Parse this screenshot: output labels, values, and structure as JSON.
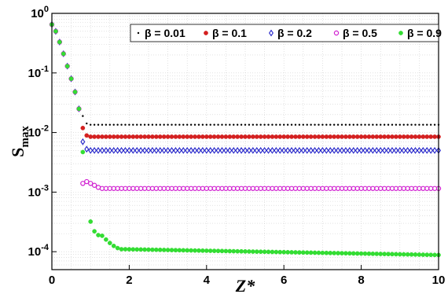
{
  "chart_data": {
    "type": "scatter",
    "xlabel": "Z*",
    "ylabel": "S",
    "ylabel_sub": "max",
    "x_ticks": [
      "0",
      "2",
      "4",
      "6",
      "8",
      "10"
    ],
    "y_ticks": [
      {
        "base": "10",
        "exp": "0"
      },
      {
        "base": "10",
        "exp": "-1"
      },
      {
        "base": "10",
        "exp": "-2"
      },
      {
        "base": "10",
        "exp": "-3"
      },
      {
        "base": "10",
        "exp": "-4"
      }
    ],
    "xlim": [
      0,
      10
    ],
    "ylim": [
      5e-05,
      1
    ],
    "y_scale": "log",
    "grid": "minor dotted",
    "legend_position": "top",
    "series": [
      {
        "name": "β = 0.01",
        "marker": "dot",
        "color": "#000000",
        "plateau": 0.0135
      },
      {
        "name": "β = 0.1",
        "marker": "filled-circle",
        "color": "#d42020",
        "plateau": 0.0085
      },
      {
        "name": "β = 0.2",
        "marker": "open-diamond",
        "color": "#2020c8",
        "plateau": 0.005
      },
      {
        "name": "β = 0.5",
        "marker": "open-circle",
        "color": "#d020d0",
        "plateau": 0.00115
      },
      {
        "name": "β = 0.9",
        "marker": "filled-circle",
        "color": "#33dd33",
        "plateau": 8.8e-05
      }
    ],
    "initial_decay": [
      [
        0.0,
        0.65
      ],
      [
        0.1,
        0.5
      ],
      [
        0.2,
        0.33
      ],
      [
        0.3,
        0.21
      ],
      [
        0.4,
        0.13
      ],
      [
        0.5,
        0.08
      ],
      [
        0.6,
        0.048
      ],
      [
        0.7,
        0.025
      ]
    ],
    "beta_0_9_transition": [
      [
        0.8,
        0.0047
      ],
      [
        1.0,
        0.00032
      ],
      [
        1.1,
        0.00022
      ],
      [
        1.2,
        0.00019
      ],
      [
        1.3,
        0.000185
      ],
      [
        1.4,
        0.00016
      ],
      [
        1.5,
        0.00014
      ],
      [
        1.6,
        0.000125
      ],
      [
        1.7,
        0.000115
      ],
      [
        1.8,
        0.00011
      ]
    ],
    "beta_0_9_tail": {
      "start": [
        1.9,
        0.00011
      ],
      "end": [
        10.0,
        8.8e-05
      ]
    },
    "beta_0_5_start": [
      [
        0.8,
        0.0014
      ],
      [
        0.9,
        0.0015
      ],
      [
        1.0,
        0.0014
      ],
      [
        1.1,
        0.0013
      ],
      [
        1.2,
        0.0012
      ]
    ]
  }
}
